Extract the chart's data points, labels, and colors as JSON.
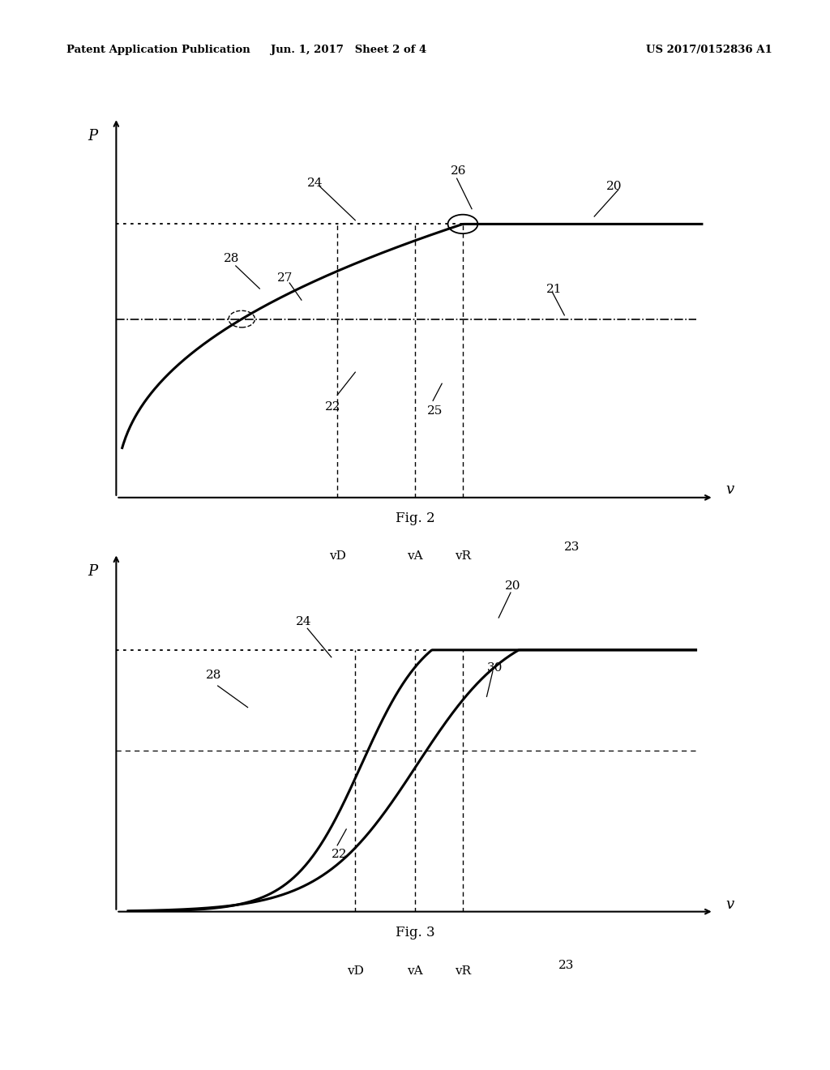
{
  "header_left": "Patent Application Publication",
  "header_mid": "Jun. 1, 2017   Sheet 2 of 4",
  "header_right": "US 2017/0152836 A1",
  "fig2_caption": "Fig. 2",
  "fig3_caption": "Fig. 3",
  "bg_color": "#ffffff"
}
